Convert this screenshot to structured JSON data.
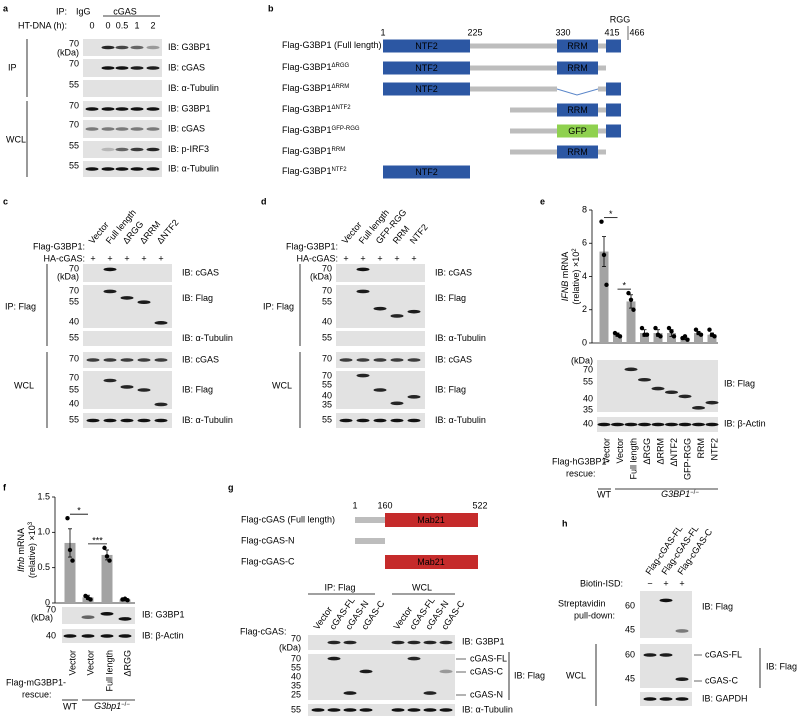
{
  "a": {
    "label": "a",
    "ip": "IP:",
    "igg": "IgG",
    "cgas": "cGAS",
    "ht_dna": "HT-DNA (h):",
    "timepoints": [
      "0",
      "0",
      "0.5",
      "1",
      "2"
    ],
    "kda": "(kDa)",
    "ip_group": "IP",
    "wcl_group": "WCL",
    "ip_blots": [
      {
        "mw": 70,
        "ib": "IB: G3BP1"
      },
      {
        "mw": 70,
        "ib": "IB: cGAS"
      },
      {
        "mw": 55,
        "ib": "IB: α-Tubulin"
      }
    ],
    "wcl_blots": [
      {
        "mw": 70,
        "ib": "IB: G3BP1"
      },
      {
        "mw": 70,
        "ib": "IB: cGAS"
      },
      {
        "mw": 55,
        "ib": "IB: p-IRF3"
      },
      {
        "mw": 55,
        "ib": "IB: α-Tubulin"
      }
    ]
  },
  "b": {
    "label": "b",
    "rgg": "RGG",
    "positions": [
      1,
      225,
      330,
      415,
      466
    ],
    "constructs": [
      {
        "name": "Flag-G3BP1 (Full length)"
      },
      {
        "name": "Flag-G3BP1",
        "sup": "ΔRGG"
      },
      {
        "name": "Flag-G3BP1",
        "sup": "ΔRRM"
      },
      {
        "name": "Flag-G3BP1",
        "sup": "ΔNTF2"
      },
      {
        "name": "Flag-G3BP1",
        "sup": "GFP-RGG"
      },
      {
        "name": "Flag-G3BP1",
        "sup": "RRM"
      },
      {
        "name": "Flag-G3BP1",
        "sup": "NTF2"
      }
    ],
    "domains": {
      "ntf2": "NTF2",
      "rrm": "RRM",
      "gfp": "GFP"
    }
  },
  "c": {
    "label": "c",
    "flag": "Flag-G3BP1:",
    "lanes": [
      "Vector",
      "Full length",
      "ΔRGG",
      "ΔRRM",
      "ΔNTF2"
    ],
    "ha": "HA-cGAS:",
    "ha_signs": [
      "+",
      "+",
      "+",
      "+",
      "+"
    ],
    "kda": "(kDa)",
    "ip_group": "IP: Flag",
    "wcl_group": "WCL",
    "ip_blots": [
      {
        "mw": [
          70
        ],
        "ib": "IB: cGAS"
      },
      {
        "mw": [
          70,
          55,
          40
        ],
        "ib": "IB: Flag"
      },
      {
        "mw": [
          55
        ],
        "ib": "IB: α-Tubulin"
      }
    ],
    "wcl_blots": [
      {
        "mw": [
          70
        ],
        "ib": "IB: cGAS"
      },
      {
        "mw": [
          70,
          55,
          40
        ],
        "ib": "IB: Flag"
      },
      {
        "mw": [
          55
        ],
        "ib": "IB: α-Tubulin"
      }
    ]
  },
  "d": {
    "label": "d",
    "flag": "Flag-G3BP1:",
    "lanes": [
      "Vector",
      "Full length",
      "GFP-RGG",
      "RRM",
      "NTF2"
    ],
    "ha": "HA-cGAS:",
    "ha_signs": [
      "+",
      "+",
      "+",
      "+",
      "+"
    ],
    "kda": "(kDa)",
    "ip_group": "IP: Flag",
    "wcl_group": "WCL",
    "ip_blots": [
      {
        "mw": [
          70
        ],
        "ib": "IB: cGAS"
      },
      {
        "mw": [
          70,
          55,
          40
        ],
        "ib": "IB: Flag"
      },
      {
        "mw": [
          55
        ],
        "ib": "IB: α-Tubulin"
      }
    ],
    "wcl_blots": [
      {
        "mw": [
          70
        ],
        "ib": "IB: cGAS"
      },
      {
        "mw": [
          70,
          55,
          40,
          35
        ],
        "ib": "IB: Flag"
      },
      {
        "mw": [
          55
        ],
        "ib": "IB: α-Tubulin"
      }
    ]
  },
  "e": {
    "label": "e",
    "chart": {
      "type": "bar",
      "ylabel": {
        "gene": "IFNB",
        "rest": " mRNA",
        "line2": "(relative) ×10",
        "exp": "2"
      },
      "categories": [
        "Vector",
        "Vector",
        "Full length",
        "ΔRGG",
        "ΔRRM",
        "ΔNTF2",
        "GFP-RGG",
        "RRM",
        "NTF2"
      ],
      "values": [
        5.5,
        0.5,
        2.5,
        0.6,
        0.6,
        0.6,
        0.3,
        0.6,
        0.5
      ],
      "errors": [
        0.9,
        0.1,
        0.4,
        0.2,
        0.2,
        0.2,
        0.1,
        0.1,
        0.1
      ],
      "points": [
        [
          7.3,
          5.3,
          3.5
        ],
        [
          0.6,
          0.5,
          0.4
        ],
        [
          3.0,
          2.6,
          2.0
        ],
        [
          0.9,
          0.5,
          0.5
        ],
        [
          0.9,
          0.5,
          0.4
        ],
        [
          0.9,
          0.7,
          0.4
        ],
        [
          0.3,
          0.4,
          0.2
        ],
        [
          0.8,
          0.6,
          0.5
        ],
        [
          0.8,
          0.5,
          0.4
        ]
      ],
      "color": "#a3a3a3",
      "ylim": [
        0,
        8
      ],
      "yticks": [
        0,
        2,
        4,
        6,
        8
      ],
      "annotations": [
        "*",
        "*"
      ]
    },
    "kda": "(kDa)",
    "flag_mw": [
      70,
      55,
      40,
      35
    ],
    "flag_ib": "IB: Flag",
    "actin_mw": 40,
    "actin_ib": "IB: β-Actin",
    "rescue": [
      "Flag-hG3BP1-",
      "rescue:"
    ],
    "wt": "WT",
    "ko": {
      "gene": "G3BP1",
      "sup": "−/−"
    }
  },
  "f": {
    "label": "f",
    "chart": {
      "type": "bar",
      "ylabel": {
        "gene": "Ifnb",
        "rest": " mRNA",
        "line2": "(relative) ×10",
        "exp": "3"
      },
      "categories": [
        "Vector",
        "Vector",
        "Full length",
        "ΔRGG"
      ],
      "values": [
        0.85,
        0.08,
        0.68,
        0.05
      ],
      "errors": [
        0.2,
        0.03,
        0.07,
        0.02
      ],
      "points": [
        [
          1.2,
          0.75,
          0.6
        ],
        [
          0.1,
          0.07,
          0.05
        ],
        [
          0.78,
          0.66,
          0.6
        ],
        [
          0.05,
          0.06,
          0.04
        ]
      ],
      "color": "#a3a3a3",
      "ylim": [
        0,
        1.5
      ],
      "yticks": [
        0,
        0.5,
        {
          "value": 1,
          "label": "1.0"
        },
        1.5
      ],
      "annotations": [
        "*",
        "***"
      ]
    },
    "kda": "(kDa)",
    "g3bp1_mw": 70,
    "g3bp1_ib": "IB: G3BP1",
    "actin_mw": 40,
    "actin_ib": "IB: β-Actin",
    "rescue": [
      "Flag-mG3BP1-",
      "rescue:"
    ],
    "wt": "WT",
    "ko": {
      "gene": "G3bp1",
      "sup": "−/−"
    }
  },
  "g": {
    "label": "g",
    "positions": [
      1,
      160,
      522
    ],
    "domain": "Mab21",
    "constructs": [
      "Flag-cGAS (Full length)",
      "Flag-cGAS-N",
      "Flag-cGAS-C"
    ],
    "ip_group": "IP: Flag",
    "wcl_group": "WCL",
    "flag": "Flag-cGAS:",
    "lanes": [
      "Vector",
      "cGAS-FL",
      "cGAS-N",
      "cGAS-C"
    ],
    "kda": "(kDa)",
    "g3bp1_mw": 70,
    "g3bp1_ib": "IB: G3BP1",
    "flag_mw": [
      70,
      55,
      40,
      35,
      25
    ],
    "flag_ib": "IB: Flag",
    "bands": [
      "cGAS-FL",
      "cGAS-C",
      "cGAS-N"
    ],
    "tub_mw": 55,
    "tub_ib": "IB: α-Tubulin"
  },
  "h": {
    "label": "h",
    "lanes": [
      "Flag-cGAS-FL",
      "Flag-cGAS-FL",
      "Flag-cGAS-C"
    ],
    "biotin": "Biotin-ISD:",
    "biotin_signs": [
      "−",
      "+",
      "+"
    ],
    "pulldown": [
      "Streptavidin",
      "pull-down:"
    ],
    "pd_mw": [
      60,
      45
    ],
    "pd_ib": "IB: Flag",
    "wcl_group": "WCL",
    "wcl_mw": [
      60,
      45
    ],
    "bands": [
      "cGAS-FL",
      "cGAS-C"
    ],
    "wcl_ib": "IB: Flag",
    "gapdh_ib": "IB: GAPDH"
  }
}
